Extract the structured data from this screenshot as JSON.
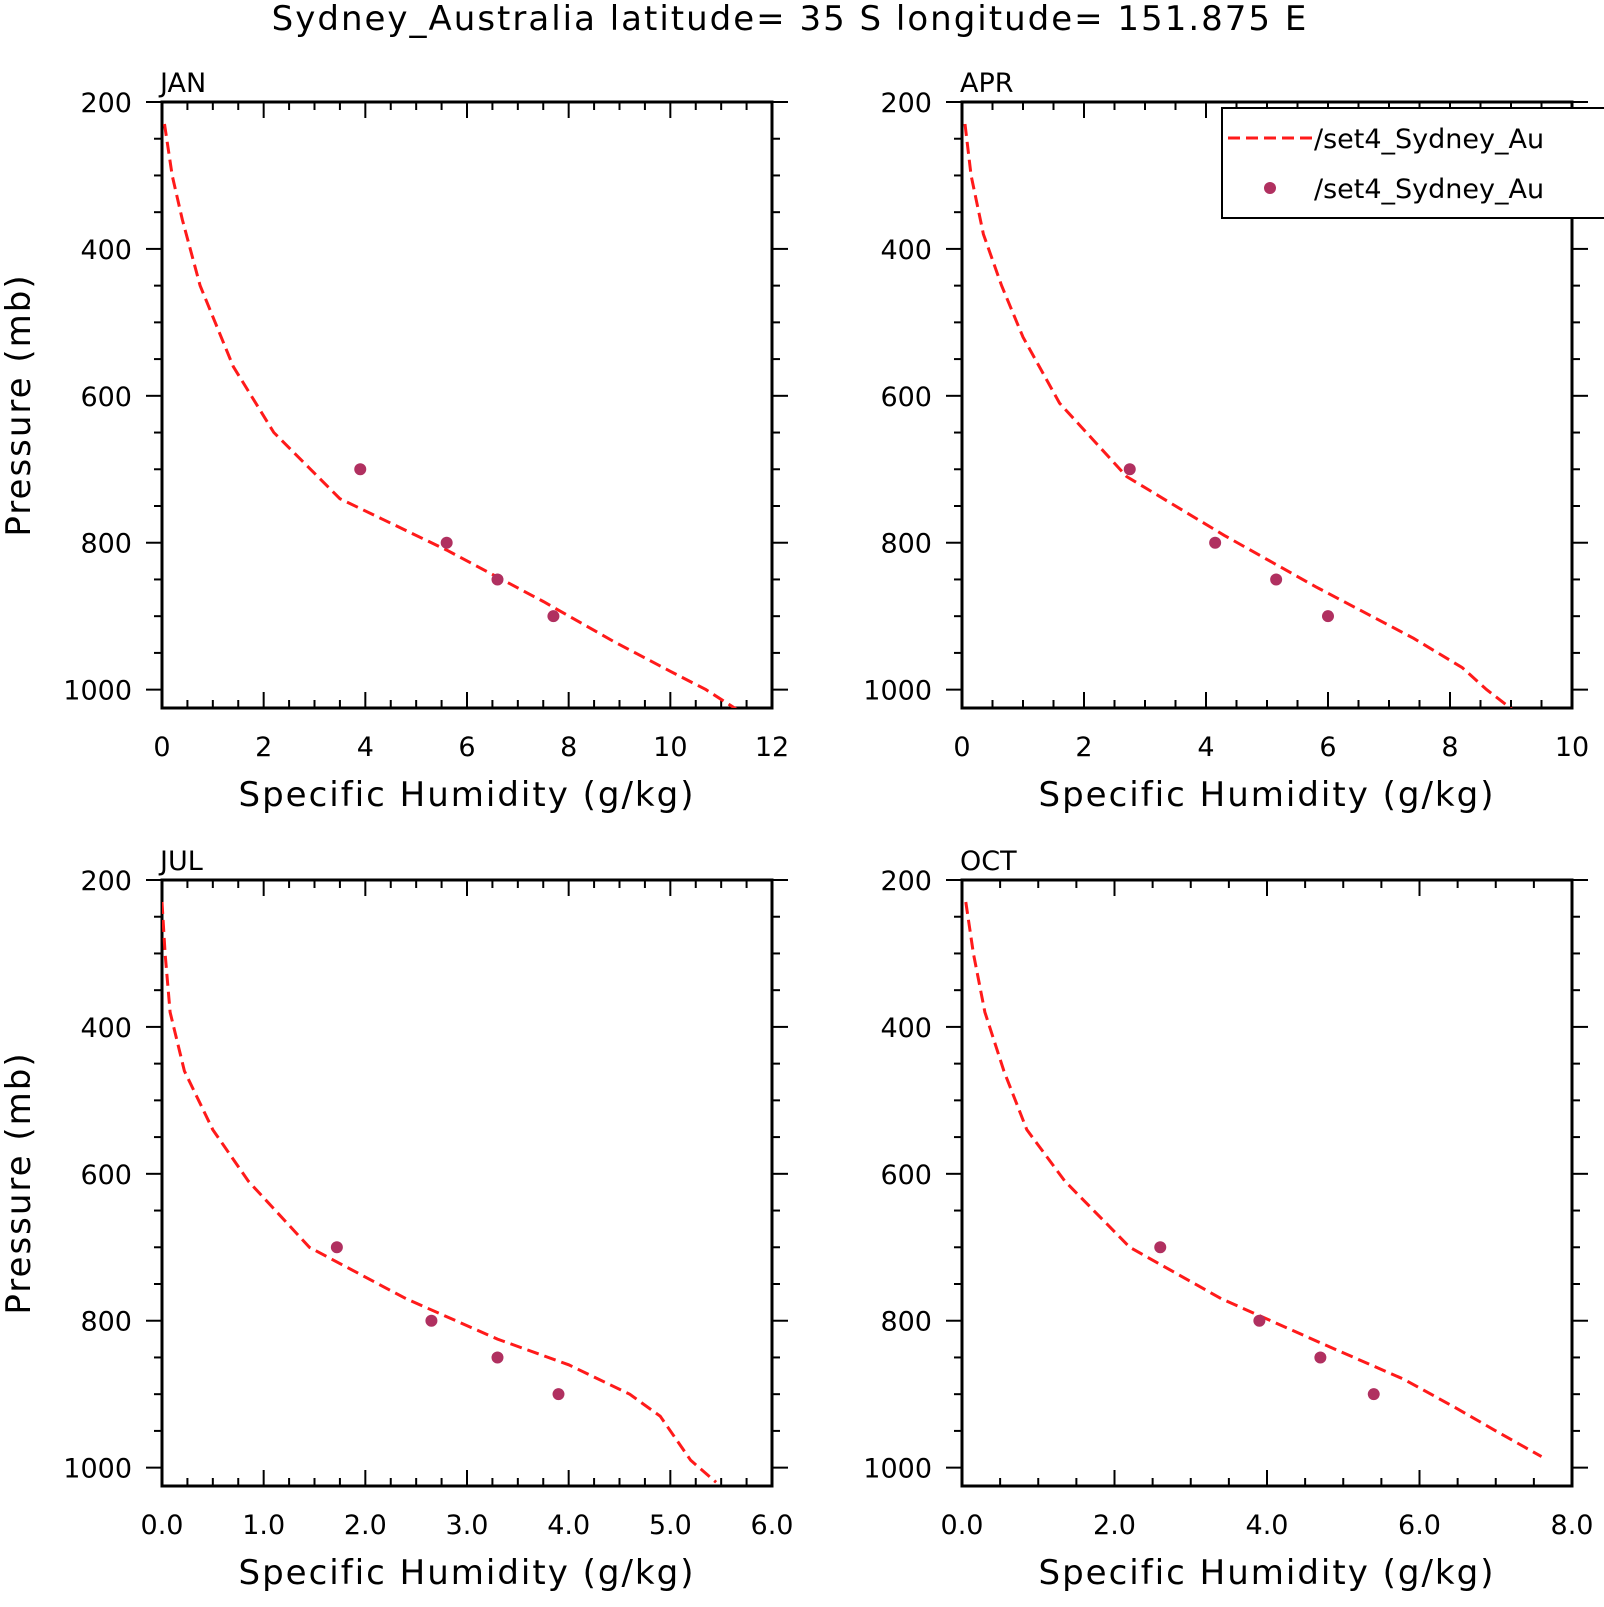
{
  "title": "Sydney_Australia  latitude= 35 S longitude= 151.875 E",
  "colors": {
    "model_line": "#ff1a1a",
    "obs_marker": "#b03060",
    "axis": "#000000",
    "background": "#ffffff"
  },
  "legend": {
    "placement": "top-right of APR panel (clipped at right edge)",
    "entries": [
      {
        "label": "/set4_Sydney_Au",
        "style": "dashed-line"
      },
      {
        "label": "/set4_Sydney_Au",
        "style": "dot"
      }
    ]
  },
  "chart_data": [
    {
      "type": "line",
      "panel_title": "JAN",
      "xlabel": "Specific Humidity (g/kg)",
      "ylabel": "Pressure (mb)",
      "xlim": [
        0,
        12
      ],
      "ylim": [
        200,
        1025
      ],
      "y_inverted": true,
      "xticks": [
        "0",
        "2",
        "4",
        "6",
        "8",
        "10",
        "12"
      ],
      "yticks": [
        "200",
        "400",
        "600",
        "800",
        "1000"
      ],
      "series": [
        {
          "kind": "line",
          "x": [
            0.05,
            0.2,
            0.4,
            0.75,
            1.4,
            2.2,
            3.5,
            5.6,
            7.5,
            8.9,
            10.0,
            10.7,
            11.6
          ],
          "y": [
            230,
            300,
            360,
            450,
            560,
            650,
            740,
            810,
            880,
            935,
            975,
            1000,
            1040
          ]
        },
        {
          "kind": "scatter",
          "x": [
            3.9,
            5.6,
            6.6,
            7.7
          ],
          "y": [
            700,
            800,
            850,
            900
          ]
        }
      ]
    },
    {
      "type": "line",
      "panel_title": "APR",
      "xlabel": "Specific Humidity (g/kg)",
      "ylabel": "",
      "xlim": [
        0,
        10
      ],
      "ylim": [
        200,
        1025
      ],
      "y_inverted": true,
      "xticks": [
        "0",
        "2",
        "4",
        "6",
        "8",
        "10"
      ],
      "yticks": [
        "200",
        "400",
        "600",
        "800",
        "1000"
      ],
      "series": [
        {
          "kind": "line",
          "x": [
            0.05,
            0.15,
            0.35,
            0.65,
            1.0,
            1.6,
            2.7,
            4.3,
            5.8,
            7.4,
            8.2,
            8.6,
            9.3
          ],
          "y": [
            230,
            300,
            380,
            450,
            520,
            610,
            710,
            790,
            860,
            930,
            970,
            1000,
            1045
          ]
        },
        {
          "kind": "scatter",
          "x": [
            2.75,
            4.15,
            5.15,
            6.0
          ],
          "y": [
            700,
            800,
            850,
            900
          ]
        }
      ]
    },
    {
      "type": "line",
      "panel_title": "JUL",
      "xlabel": "Specific Humidity (g/kg)",
      "ylabel": "Pressure (mb)",
      "xlim": [
        0,
        6
      ],
      "ylim": [
        200,
        1025
      ],
      "y_inverted": true,
      "xticks": [
        "0.0",
        "1.0",
        "2.0",
        "3.0",
        "4.0",
        "5.0",
        "6.0"
      ],
      "yticks": [
        "200",
        "400",
        "600",
        "800",
        "1000"
      ],
      "series": [
        {
          "kind": "line",
          "x": [
            0.0,
            0.03,
            0.08,
            0.22,
            0.5,
            0.85,
            1.45,
            2.4,
            3.3,
            4.0,
            4.6,
            4.9,
            5.2,
            5.45
          ],
          "y": [
            230,
            300,
            380,
            460,
            540,
            610,
            700,
            770,
            825,
            860,
            900,
            930,
            990,
            1020
          ]
        },
        {
          "kind": "scatter",
          "x": [
            1.72,
            2.65,
            3.3,
            3.9
          ],
          "y": [
            700,
            800,
            850,
            900
          ]
        }
      ]
    },
    {
      "type": "line",
      "panel_title": "OCT",
      "xlabel": "Specific Humidity (g/kg)",
      "ylabel": "",
      "xlim": [
        0,
        8
      ],
      "ylim": [
        200,
        1025
      ],
      "y_inverted": true,
      "xticks": [
        "0.0",
        "2.0",
        "4.0",
        "6.0",
        "8.0"
      ],
      "yticks": [
        "200",
        "400",
        "600",
        "800",
        "1000"
      ],
      "series": [
        {
          "kind": "line",
          "x": [
            0.05,
            0.15,
            0.3,
            0.55,
            0.85,
            1.35,
            2.2,
            3.4,
            4.7,
            5.8,
            6.5,
            7.0,
            7.6
          ],
          "y": [
            230,
            300,
            380,
            460,
            540,
            610,
            700,
            770,
            830,
            880,
            920,
            950,
            985
          ]
        },
        {
          "kind": "scatter",
          "x": [
            2.6,
            3.9,
            4.7,
            5.4
          ],
          "y": [
            700,
            800,
            850,
            900
          ]
        }
      ]
    }
  ]
}
